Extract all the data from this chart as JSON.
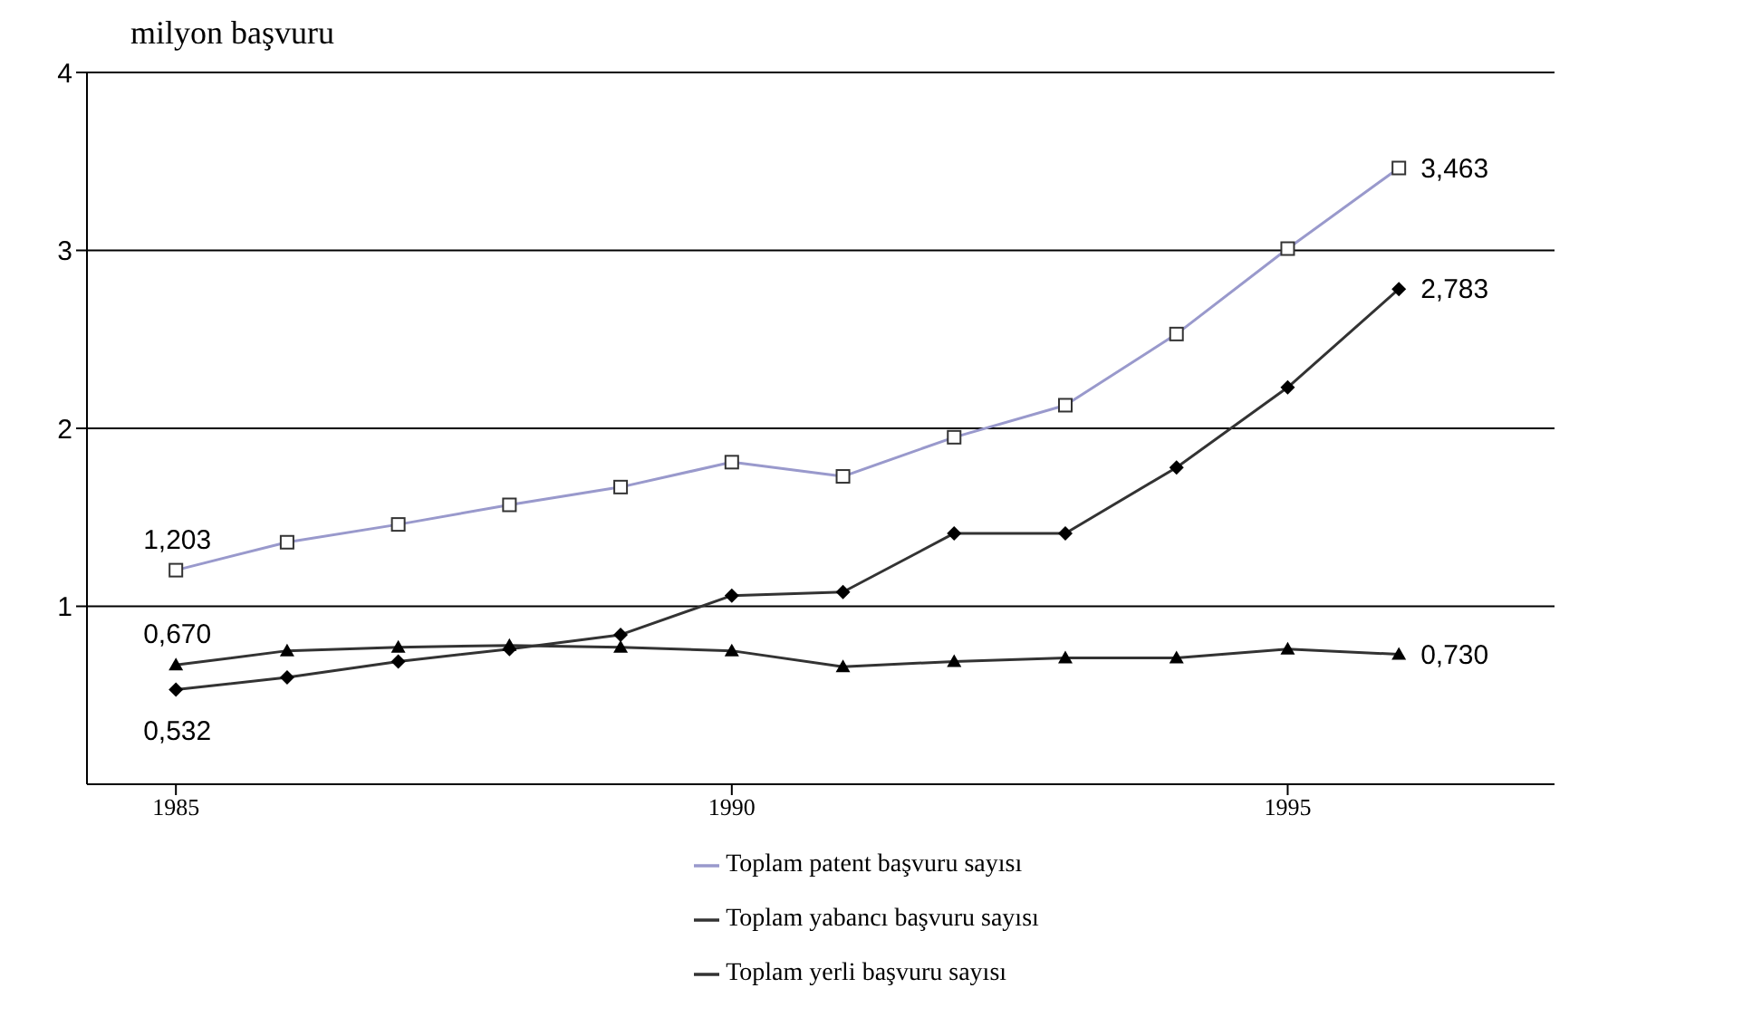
{
  "chart_data": {
    "type": "line",
    "ylabel": "milyon başvuru",
    "x": [
      1985,
      1986,
      1987,
      1988,
      1989,
      1990,
      1991,
      1992,
      1993,
      1994,
      1995,
      1996
    ],
    "series": [
      {
        "name": "Toplam patent başvuru sayısı",
        "color": "#9999cc",
        "marker": "square",
        "values": [
          1.203,
          1.36,
          1.46,
          1.57,
          1.67,
          1.81,
          1.73,
          1.95,
          2.13,
          2.53,
          3.01,
          3.463
        ],
        "value_labels": [
          "1,203",
          null,
          null,
          null,
          null,
          null,
          null,
          null,
          null,
          null,
          null,
          "3,463"
        ]
      },
      {
        "name": "Toplam yabancı başvuru sayısı",
        "color": "#333333",
        "marker": "diamond",
        "values": [
          0.532,
          0.6,
          0.69,
          0.76,
          0.84,
          1.06,
          1.08,
          1.41,
          1.41,
          1.78,
          2.23,
          2.783
        ],
        "value_labels": [
          "0,532",
          null,
          null,
          null,
          null,
          null,
          null,
          null,
          null,
          null,
          null,
          "2,783"
        ]
      },
      {
        "name": "Toplam yerli başvuru sayısı",
        "color": "#333333",
        "marker": "triangle",
        "values": [
          0.67,
          0.75,
          0.77,
          0.78,
          0.77,
          0.75,
          0.66,
          0.69,
          0.71,
          0.71,
          0.76,
          0.73
        ],
        "value_labels": [
          "0,670",
          null,
          null,
          null,
          null,
          null,
          null,
          null,
          null,
          null,
          null,
          "0,730"
        ]
      }
    ],
    "xlim": [
      1984.2,
      1997.4
    ],
    "xticks": [
      1985,
      1990,
      1995
    ],
    "ylim": [
      0,
      4
    ],
    "yticks": [
      1,
      2,
      3,
      4
    ],
    "grid": "y",
    "legend": "bottom"
  }
}
